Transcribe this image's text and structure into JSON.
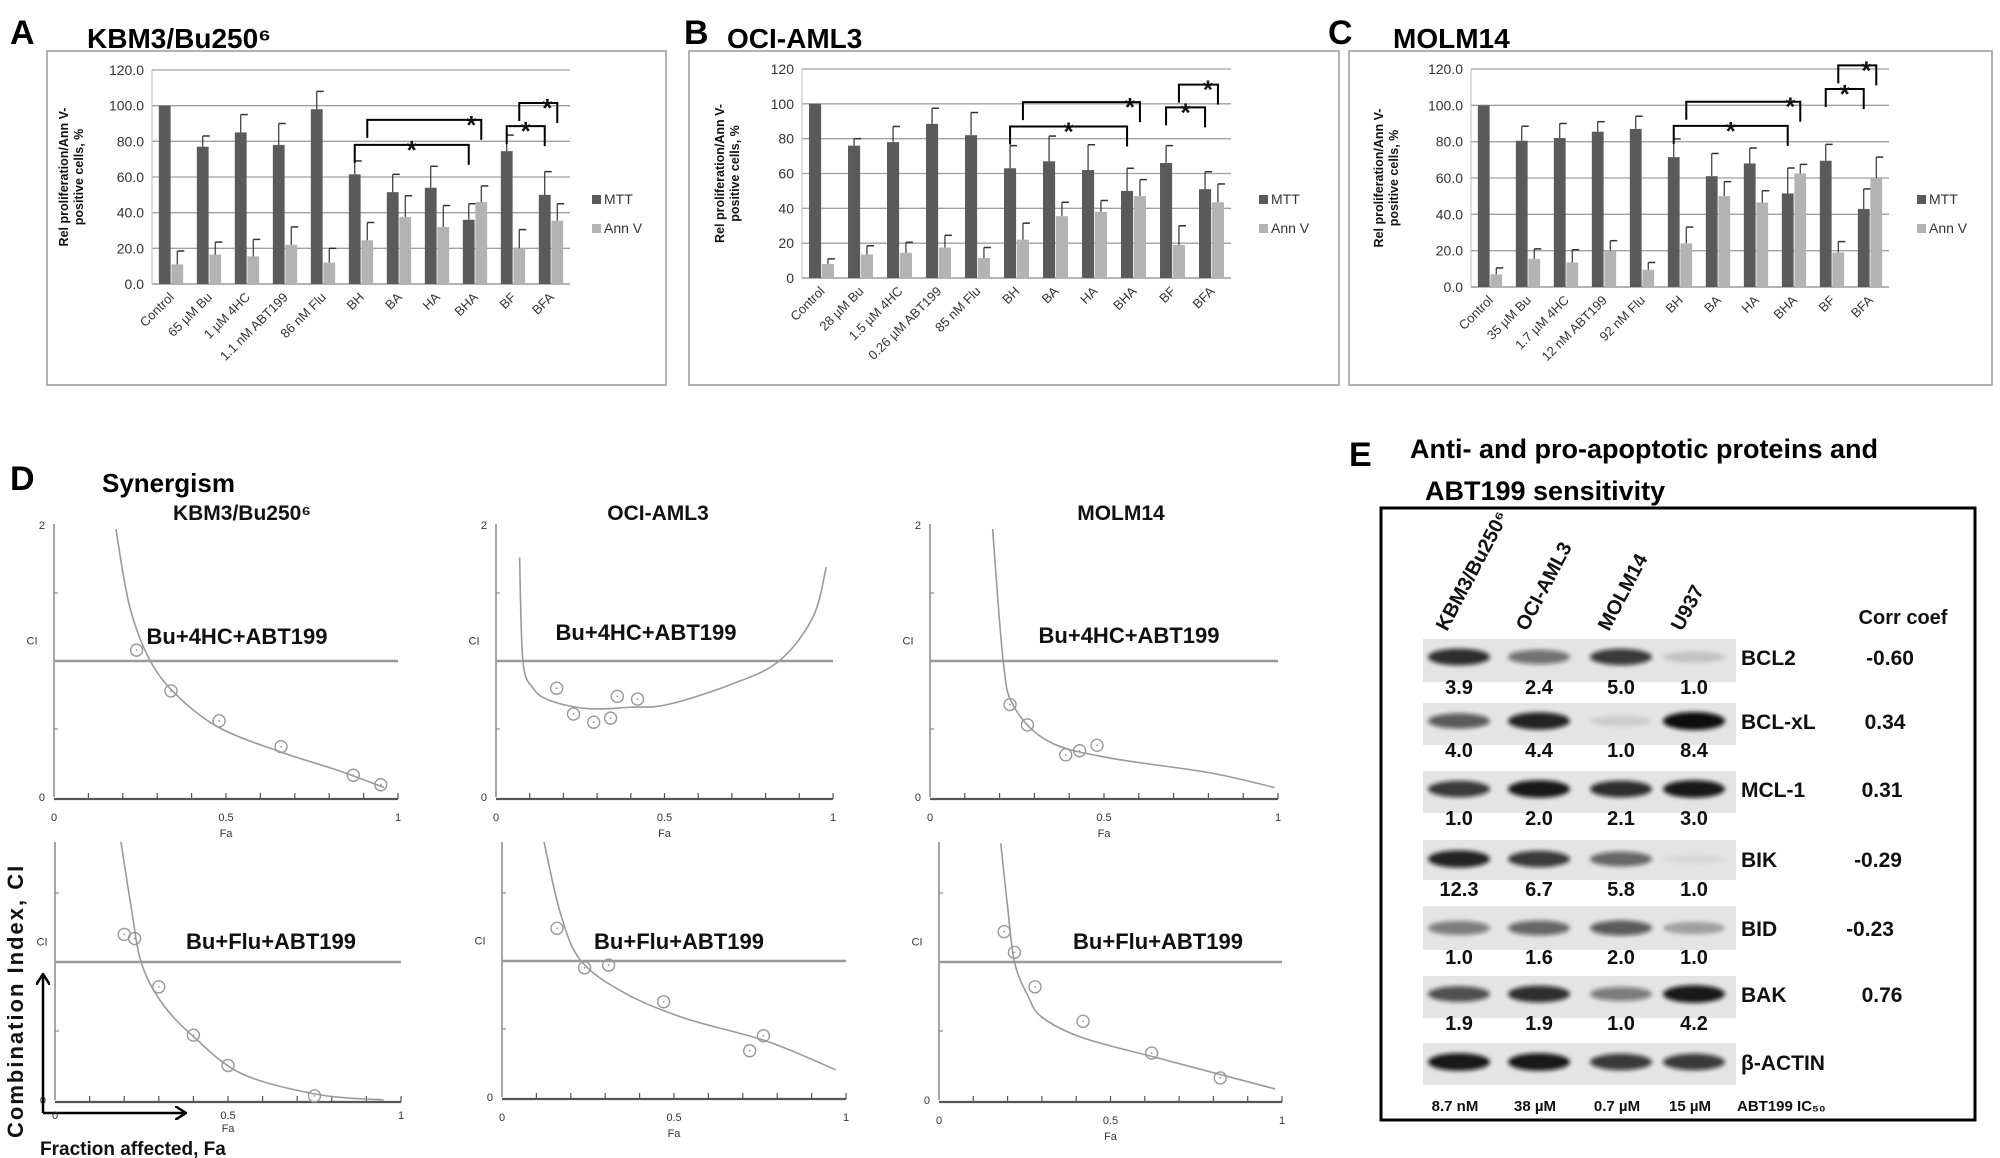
{
  "chart_data": [
    {
      "type": "bar",
      "panel": "A",
      "title": "KBM3/Bu250⁶",
      "ylabel": [
        "Rel proliferation/Ann V-",
        "positive cells, %"
      ],
      "ylim": [
        0,
        120
      ],
      "yticks": [
        "0.0",
        "20.0",
        "40.0",
        "60.0",
        "80.0",
        "100.0",
        "120.0"
      ],
      "grid": true,
      "legend": "right",
      "categories": [
        "Control",
        "65  µM Bu",
        "1 µM 4HC",
        "1.1 nM ABT199",
        "86 nM Flu",
        "BH",
        "BA",
        "HA",
        "BHA",
        "BF",
        "BFA"
      ],
      "series": [
        {
          "name": "MTT",
          "color": "#5a5a5a",
          "values": [
            100,
            77,
            85,
            78,
            98,
            61.5,
            51.5,
            54,
            36,
            74.5,
            50
          ],
          "errors": [
            0,
            6,
            10,
            12,
            10,
            7.5,
            10,
            12,
            9,
            9,
            13
          ]
        },
        {
          "name": "Ann V",
          "color": "#b3b3b3",
          "values": [
            11,
            16.5,
            15.5,
            22,
            12,
            24.5,
            37.5,
            32,
            46,
            20,
            35.5
          ],
          "errors": [
            7.5,
            7,
            9.5,
            10,
            8,
            10,
            12,
            12,
            9,
            10.5,
            9.5
          ]
        }
      ],
      "significance": [
        {
          "from": "BH",
          "to": "BHA",
          "series": "MTT",
          "label": "*"
        },
        {
          "from": "BH",
          "to": "BHA",
          "series": "Ann V",
          "label": "*"
        },
        {
          "from": "BF",
          "to": "BFA",
          "series": "MTT",
          "label": "*"
        },
        {
          "from": "BF",
          "to": "BFA",
          "series": "Ann V",
          "label": "*"
        }
      ]
    },
    {
      "type": "bar",
      "panel": "B",
      "title": "OCI-AML3",
      "ylabel": [
        "Rel proliferation/Ann V-",
        "positive cells, %"
      ],
      "ylim": [
        0,
        120
      ],
      "yticks": [
        "0",
        "20",
        "40",
        "60",
        "80",
        "100",
        "120"
      ],
      "grid": true,
      "legend": "right",
      "categories": [
        "Control",
        "28  µM Bu",
        "1.5 µM 4HC",
        "0.26 µM ABT199",
        "85 nM Flu",
        "BH",
        "BA",
        "HA",
        "BHA",
        "BF",
        "BFA"
      ],
      "series": [
        {
          "name": "MTT",
          "color": "#5a5a5a",
          "values": [
            100,
            76,
            78,
            88.5,
            82,
            63,
            67,
            62,
            50,
            66,
            51
          ],
          "errors": [
            0,
            4,
            9,
            9,
            13,
            13,
            14.5,
            14.5,
            13,
            10,
            10
          ]
        },
        {
          "name": "Ann V",
          "color": "#b3b3b3",
          "values": [
            8,
            13.5,
            14.5,
            17.5,
            11.5,
            22,
            35.5,
            38,
            47,
            19,
            43.5
          ],
          "errors": [
            3,
            5,
            6,
            7,
            6,
            9.5,
            8,
            6.5,
            9.5,
            11,
            10.5
          ]
        }
      ],
      "significance": [
        {
          "from": "BH",
          "to": "BHA",
          "series": "MTT",
          "label": "*"
        },
        {
          "from": "BH",
          "to": "BHA",
          "series": "Ann V",
          "label": "*"
        },
        {
          "from": "BF",
          "to": "BFA",
          "series": "MTT",
          "label": "*"
        },
        {
          "from": "BF",
          "to": "BFA",
          "series": "Ann V",
          "label": "*"
        }
      ]
    },
    {
      "type": "bar",
      "panel": "C",
      "title": "MOLM14",
      "ylabel": [
        "Rel proliferation/Ann V-",
        "positive cells, %"
      ],
      "ylim": [
        0,
        120
      ],
      "yticks": [
        "0.0",
        "20.0",
        "40.0",
        "60.0",
        "80.0",
        "100.0",
        "120.0"
      ],
      "grid": true,
      "legend": "right",
      "categories": [
        "Control",
        "35 µM Bu",
        "1.7  µM 4HC",
        "12 nM ABT199",
        "92 nM Flu",
        "BH",
        "BA",
        "HA",
        "BHA",
        "BF",
        "BFA"
      ],
      "series": [
        {
          "name": "MTT",
          "color": "#5a5a5a",
          "values": [
            100,
            80.5,
            82,
            85.5,
            87,
            71.5,
            61,
            68,
            51.5,
            69.5,
            43
          ],
          "errors": [
            0,
            8,
            8,
            5.5,
            7,
            10,
            12.5,
            8.5,
            14,
            9,
            11
          ]
        },
        {
          "name": "Ann V",
          "color": "#b3b3b3",
          "values": [
            7,
            15.5,
            13.5,
            20,
            9.5,
            24,
            50,
            46.5,
            62.5,
            19,
            60
          ],
          "errors": [
            3.5,
            5.5,
            7,
            5.5,
            4,
            9,
            8,
            6.5,
            5,
            6,
            11.5
          ]
        }
      ],
      "significance": [
        {
          "from": "BH",
          "to": "BHA",
          "series": "MTT",
          "label": "*"
        },
        {
          "from": "BH",
          "to": "BHA",
          "series": "Ann V",
          "label": "*"
        },
        {
          "from": "BF",
          "to": "BFA",
          "series": "MTT",
          "label": "*"
        },
        {
          "from": "BF",
          "to": "BFA",
          "series": "Ann V",
          "label": "*"
        }
      ]
    },
    {
      "type": "scatter",
      "title": "KBM3/Bu250⁶",
      "annotation": "Bu+4HC+ABT199",
      "xlabel": "Fa",
      "ylabel": "CI",
      "xlim": [
        0,
        1
      ],
      "ylim": [
        0,
        2
      ],
      "xticks": [
        "0",
        "0.5",
        "1"
      ],
      "yticks": [
        "0",
        "2"
      ],
      "reference_line": 1,
      "points": [
        [
          0.24,
          1.08
        ],
        [
          0.34,
          0.78
        ],
        [
          0.48,
          0.56
        ],
        [
          0.66,
          0.37
        ],
        [
          0.87,
          0.16
        ],
        [
          0.95,
          0.09
        ]
      ],
      "curve": [
        [
          0.18,
          1.97
        ],
        [
          0.22,
          1.4
        ],
        [
          0.28,
          1.0
        ],
        [
          0.36,
          0.74
        ],
        [
          0.48,
          0.51
        ],
        [
          0.66,
          0.33
        ],
        [
          0.82,
          0.2
        ],
        [
          0.96,
          0.07
        ]
      ]
    },
    {
      "type": "scatter",
      "title": "OCI-AML3",
      "annotation": "Bu+4HC+ABT199",
      "xlabel": "Fa",
      "ylabel": "CI",
      "xlim": [
        0,
        1
      ],
      "ylim": [
        0,
        2
      ],
      "xticks": [
        "0",
        "0.5",
        "1"
      ],
      "yticks": [
        "0",
        "2"
      ],
      "reference_line": 1,
      "points": [
        [
          0.18,
          0.8
        ],
        [
          0.23,
          0.61
        ],
        [
          0.29,
          0.55
        ],
        [
          0.34,
          0.58
        ],
        [
          0.36,
          0.74
        ],
        [
          0.42,
          0.72
        ]
      ],
      "curve": [
        [
          0.07,
          1.76
        ],
        [
          0.08,
          1.0
        ],
        [
          0.11,
          0.8
        ],
        [
          0.16,
          0.71
        ],
        [
          0.27,
          0.65
        ],
        [
          0.4,
          0.66
        ],
        [
          0.51,
          0.68
        ],
        [
          0.7,
          0.83
        ],
        [
          0.84,
          1.0
        ],
        [
          0.94,
          1.32
        ],
        [
          0.98,
          1.69
        ]
      ]
    },
    {
      "type": "scatter",
      "title": "MOLM14",
      "annotation": "Bu+4HC+ABT199",
      "xlabel": "Fa",
      "ylabel": "CI",
      "xlim": [
        0,
        1
      ],
      "ylim": [
        0,
        2
      ],
      "xticks": [
        "0",
        "0.5",
        "1"
      ],
      "yticks": [
        "0",
        "2"
      ],
      "reference_line": 1,
      "points": [
        [
          0.23,
          0.68
        ],
        [
          0.28,
          0.53
        ],
        [
          0.39,
          0.31
        ],
        [
          0.43,
          0.34
        ],
        [
          0.48,
          0.38
        ]
      ],
      "curve": [
        [
          0.18,
          1.97
        ],
        [
          0.21,
          1.01
        ],
        [
          0.24,
          0.67
        ],
        [
          0.34,
          0.41
        ],
        [
          0.51,
          0.29
        ],
        [
          0.8,
          0.18
        ],
        [
          0.99,
          0.07
        ]
      ]
    },
    {
      "type": "scatter",
      "annotation": "Bu+Flu+ABT199",
      "xlabel": "Fa",
      "ylabel": "CI",
      "xlim": [
        0,
        1
      ],
      "ylim": [
        0,
        2
      ],
      "xticks": [
        "0",
        "0.5",
        "1"
      ],
      "yticks": [
        "0"
      ],
      "reference_line": 1,
      "points": [
        [
          0.2,
          1.2
        ],
        [
          0.23,
          1.17
        ],
        [
          0.3,
          0.82
        ],
        [
          0.4,
          0.47
        ],
        [
          0.5,
          0.25
        ],
        [
          0.75,
          0.03
        ]
      ],
      "curve": [
        [
          0.19,
          1.88
        ],
        [
          0.22,
          1.4
        ],
        [
          0.25,
          0.99
        ],
        [
          0.31,
          0.7
        ],
        [
          0.4,
          0.46
        ],
        [
          0.54,
          0.19
        ],
        [
          0.76,
          0.04
        ],
        [
          0.95,
          0.0
        ]
      ]
    },
    {
      "type": "scatter",
      "annotation": "Bu+Flu+ABT199",
      "xlabel": "Fa",
      "ylabel": "CI",
      "xlim": [
        0,
        1
      ],
      "ylim": [
        0,
        2
      ],
      "xticks": [
        "0",
        "0.5",
        "1"
      ],
      "yticks": [
        "0"
      ],
      "reference_line": 1,
      "points": [
        [
          0.16,
          1.24
        ],
        [
          0.24,
          0.95
        ],
        [
          0.31,
          0.97
        ],
        [
          0.47,
          0.7
        ],
        [
          0.72,
          0.34
        ],
        [
          0.76,
          0.45
        ]
      ],
      "curve": [
        [
          0.12,
          1.9
        ],
        [
          0.17,
          1.35
        ],
        [
          0.23,
          1.0
        ],
        [
          0.36,
          0.76
        ],
        [
          0.53,
          0.58
        ],
        [
          0.77,
          0.41
        ],
        [
          0.97,
          0.2
        ]
      ]
    },
    {
      "type": "scatter",
      "annotation": "Bu+Flu+ABT199",
      "xlabel": "Fa",
      "ylabel": "CI",
      "xlim": [
        0,
        1
      ],
      "ylim": [
        0,
        2
      ],
      "xticks": [
        "0",
        "0.5",
        "1"
      ],
      "yticks": [
        "0"
      ],
      "reference_line": 1,
      "points": [
        [
          0.19,
          1.22
        ],
        [
          0.22,
          1.07
        ],
        [
          0.28,
          0.82
        ],
        [
          0.42,
          0.57
        ],
        [
          0.62,
          0.34
        ],
        [
          0.82,
          0.16
        ]
      ],
      "curve": [
        [
          0.18,
          1.86
        ],
        [
          0.2,
          1.4
        ],
        [
          0.22,
          1.0
        ],
        [
          0.26,
          0.75
        ],
        [
          0.3,
          0.6
        ],
        [
          0.42,
          0.45
        ],
        [
          0.66,
          0.29
        ],
        [
          0.98,
          0.08
        ]
      ]
    }
  ],
  "panel_d": {
    "letter": "D",
    "title": "Synergism",
    "axis_label_y": "Combination Index, CI",
    "axis_label_x": "Fraction affected, Fa"
  },
  "blot": {
    "letter": "E",
    "title_lines": [
      "Anti- and pro-apoptotic proteins and",
      "ABT199 sensitivity"
    ],
    "cell_lines": [
      "KBM3/Bu250⁶",
      "OCI-AML3",
      "MOLM14",
      "U937"
    ],
    "corr_header": "Corr coef",
    "proteins": [
      {
        "name": "BCL2",
        "values": [
          "3.9",
          "2.4",
          "5.0",
          "1.0"
        ],
        "corr": "-0.60",
        "band_intensity": [
          0.85,
          0.55,
          0.8,
          0.15
        ]
      },
      {
        "name": "BCL-xL",
        "values": [
          "4.0",
          "4.4",
          "1.0",
          "8.4"
        ],
        "corr": "0.34",
        "band_intensity": [
          0.65,
          0.9,
          0.1,
          1.0
        ]
      },
      {
        "name": "MCL-1",
        "values": [
          "1.0",
          "2.0",
          "2.1",
          "3.0"
        ],
        "corr": "0.31",
        "band_intensity": [
          0.8,
          0.95,
          0.85,
          0.95
        ]
      },
      {
        "name": "BIK",
        "values": [
          "12.3",
          "6.7",
          "5.8",
          "1.0"
        ],
        "corr": "-0.29",
        "band_intensity": [
          0.9,
          0.8,
          0.6,
          0.02
        ]
      },
      {
        "name": "BID",
        "values": [
          "1.0",
          "1.6",
          "2.0",
          "1.0"
        ],
        "corr": "-0.23",
        "band_intensity": [
          0.5,
          0.6,
          0.65,
          0.3
        ]
      },
      {
        "name": "BAK",
        "values": [
          "1.9",
          "1.9",
          "1.0",
          "4.2"
        ],
        "corr": "0.76",
        "band_intensity": [
          0.7,
          0.85,
          0.5,
          0.95
        ]
      },
      {
        "name": "β-ACTIN",
        "band_intensity": [
          0.95,
          0.95,
          0.8,
          0.8
        ]
      }
    ],
    "ic50": [
      "8.7 nM",
      "38 µM",
      "0.7 µM",
      "15 µM"
    ],
    "ic50_label": "ABT199 IC₅₀"
  }
}
